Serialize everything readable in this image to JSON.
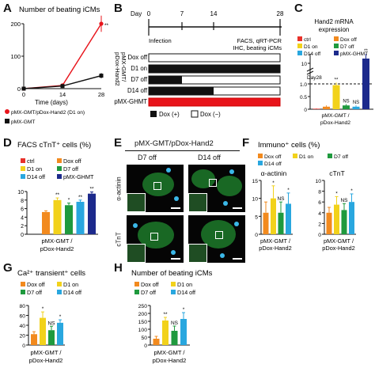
{
  "panels": {
    "a": "A",
    "b": "B",
    "c": "C",
    "d": "D",
    "e": "E",
    "f": "F",
    "g": "G",
    "h": "H"
  },
  "panel_a": {
    "title": "Number of beating iCMs",
    "xlabel": "Time (days)",
    "legend": [
      "pMX-GMT/pDox-Hand2 (D1 on)",
      "pMX-GMT"
    ],
    "star": "**"
  },
  "panel_b": {
    "day_label": "Day",
    "day_ticks": [
      "0",
      "7",
      "14",
      "28"
    ],
    "infection": "Infection",
    "endpoint": [
      "FACS, qRT-PCR",
      "IHC, beating iCMs"
    ],
    "row_labels": [
      "Dox off",
      "D1 on",
      "D7 off",
      "D14 off",
      "pMX-GHMT"
    ],
    "group_label": [
      "pMX-GMT/",
      "pDox-Hand2"
    ],
    "legend_on": "Dox (+)",
    "legend_off": "Dox (−)"
  },
  "panel_c": {
    "title": [
      "Hand2 mRNA",
      "expression"
    ],
    "legend": [
      "ctrl",
      "Dox off",
      "D1 on",
      "D7 off",
      "D14 off",
      "pMX-GHMT"
    ],
    "day": "Day28",
    "xlabel": [
      "pMX-GMT /",
      "pDox-Hand2"
    ],
    "annotations": [
      "**",
      "NS",
      "NS",
      "**"
    ]
  },
  "panel_d": {
    "title": "FACS cTnT⁺ cells (%)",
    "legend": [
      "ctrl",
      "Dox off",
      "D1 on",
      "D7 off",
      "D14 off",
      "pMX-GHMT"
    ],
    "xlabel": [
      "pMX-GMT /",
      "pDox-Hand2"
    ],
    "annotations": [
      "**",
      "*",
      "**",
      "**"
    ]
  },
  "panel_e": {
    "title": "pMX-GMT/pDox-Hand2",
    "cols": [
      "D7 off",
      "D14 off"
    ],
    "rows": [
      "α-actinin",
      "cTnT"
    ]
  },
  "panel_f": {
    "title": "Immuno⁺ cells (%)",
    "legend": [
      "Dox off",
      "D1 on",
      "D7 off",
      "D14 off"
    ],
    "sub_a": "α-actinin",
    "sub_b": "cTnT",
    "xlabel": [
      "pMX-GMT /",
      "pDox-Hand2"
    ],
    "annotations_a": [
      "*",
      "NS",
      "*"
    ],
    "annotations_b": [
      "*",
      "NS",
      "*"
    ]
  },
  "panel_g": {
    "title": "Ca²⁺ transient⁺ cells",
    "legend": [
      "Dox off",
      "D1 on",
      "D7 off",
      "D14 off"
    ],
    "xlabel": [
      "pMX-GMT /",
      "pDox-Hand2"
    ],
    "annotations": [
      "*",
      "NS",
      "*"
    ]
  },
  "panel_h": {
    "title": "Number of beating iCMs",
    "legend": [
      "Dox off",
      "D1 on",
      "D7 off",
      "D14 off"
    ],
    "xlabel": [
      "pMX-GMT /",
      "pDox-Hand2"
    ],
    "annotations": [
      "**",
      "NS",
      "*"
    ]
  },
  "colors": {
    "ctrl": "#e8312a",
    "dox_off": "#f28a1e",
    "d1_on": "#f2d21b",
    "d7_off": "#1f9a3e",
    "d14_off": "#29a7df",
    "ghmt": "#1c2a8c",
    "red": "#e8141b",
    "black": "#111111"
  },
  "chart_data": [
    {
      "panel": "A",
      "type": "line",
      "x": [
        0,
        14,
        28
      ],
      "xlim": [
        0,
        28
      ],
      "ylim": [
        0,
        200
      ],
      "yticks": [
        0,
        100,
        200
      ],
      "series": [
        {
          "name": "pMX-GMT/pDox-Hand2 (D1 on)",
          "values": [
            0,
            10,
            200
          ],
          "errors": [
            0,
            5,
            25
          ]
        },
        {
          "name": "pMX-GMT",
          "values": [
            0,
            8,
            40
          ],
          "errors": [
            0,
            3,
            8
          ]
        }
      ]
    },
    {
      "panel": "C",
      "type": "bar",
      "categories": [
        "ctrl",
        "Dox off",
        "D1 on",
        "D7 off",
        "D14 off",
        "pMX-GHMT"
      ],
      "values": [
        0.02,
        0.1,
        0.95,
        0.15,
        0.1,
        11
      ],
      "errors": [
        0.01,
        0.05,
        0.1,
        0.05,
        0.05,
        1
      ],
      "yticks": [
        "0",
        "0.5",
        "1.0",
        "10"
      ]
    },
    {
      "panel": "D",
      "type": "bar",
      "categories": [
        "ctrl",
        "Dox off",
        "D1 on",
        "D7 off",
        "D14 off",
        "pMX-GHMT"
      ],
      "values": [
        0,
        5.2,
        8,
        6.8,
        7.6,
        9.5
      ],
      "errors": [
        0,
        0.3,
        0.5,
        0.5,
        0.4,
        0.4
      ],
      "yticks": [
        0,
        2,
        4,
        6,
        8,
        10
      ],
      "ylim": [
        0,
        10
      ]
    },
    {
      "panel": "F",
      "subtitle": "α-actinin",
      "type": "bar",
      "categories": [
        "Dox off",
        "D1 on",
        "D7 off",
        "D14 off"
      ],
      "values": [
        6,
        10,
        6,
        8.5
      ],
      "errors": [
        3,
        3.5,
        3,
        3
      ],
      "yticks": [
        0,
        5,
        10,
        15
      ],
      "ylim": [
        0,
        15
      ]
    },
    {
      "panel": "F",
      "subtitle": "cTnT",
      "type": "bar",
      "categories": [
        "Dox off",
        "D1 on",
        "D7 off",
        "D14 off"
      ],
      "values": [
        4,
        5.5,
        4.5,
        6
      ],
      "errors": [
        1,
        1.5,
        1.2,
        1.5
      ],
      "yticks": [
        0,
        2,
        4,
        6,
        8,
        10
      ],
      "ylim": [
        0,
        10
      ]
    },
    {
      "panel": "G",
      "type": "bar",
      "categories": [
        "Dox off",
        "D1 on",
        "D7 off",
        "D14 off"
      ],
      "values": [
        22,
        55,
        30,
        45
      ],
      "errors": [
        5,
        12,
        8,
        6
      ],
      "yticks": [
        0,
        20,
        40,
        60,
        80
      ],
      "ylim": [
        0,
        80
      ]
    },
    {
      "panel": "H",
      "type": "bar",
      "categories": [
        "Dox off",
        "D1 on",
        "D7 off",
        "D14 off"
      ],
      "values": [
        40,
        155,
        90,
        165
      ],
      "errors": [
        15,
        20,
        30,
        40
      ],
      "yticks": [
        0,
        50,
        100,
        150,
        200,
        250
      ],
      "ylim": [
        0,
        250
      ]
    }
  ]
}
